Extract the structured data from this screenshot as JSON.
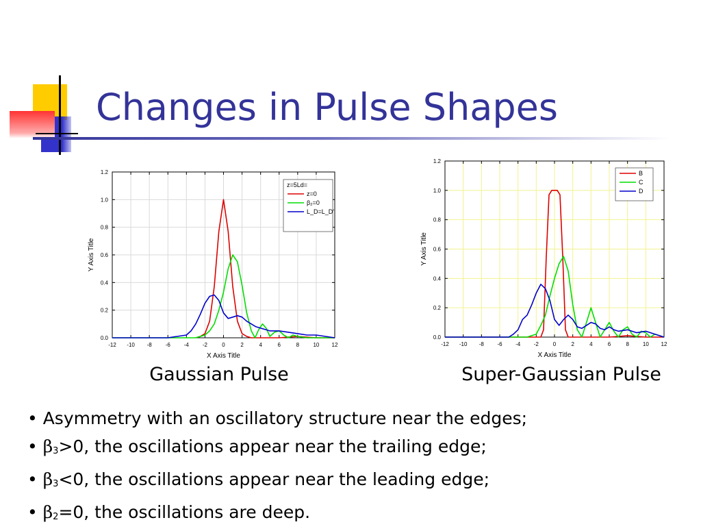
{
  "slide": {
    "title": "Changes in Pulse Shapes",
    "colors": {
      "title": "#333399",
      "deco_yellow": "#ffcc00",
      "deco_blue": "#3333cc",
      "deco_red": "#ff3333"
    }
  },
  "captions": {
    "left": "Gaussian Pulse",
    "right": "Super-Gaussian Pulse"
  },
  "bullets": [
    {
      "bullet": "•",
      "sym": "",
      "sub": "",
      "text": "Asymmetry with an oscillatory structure near the edges;"
    },
    {
      "bullet": "•",
      "sym": "β",
      "sub": "3",
      "text": ">0, the oscillations appear near the trailing edge;"
    },
    {
      "bullet": "•",
      "sym": "β",
      "sub": "3",
      "text": "<0, the oscillations appear near the leading edge;"
    },
    {
      "bullet": "•",
      "sym": "β",
      "sub": "2",
      "text": "=0, the oscillations are deep."
    }
  ],
  "chart_data": [
    {
      "type": "line",
      "xlabel": "X Axis Title",
      "ylabel": "Y Axis Title",
      "xlim": [
        -12,
        12
      ],
      "ylim": [
        0,
        1.2
      ],
      "xticks": [
        "-12",
        "-10",
        "-8",
        "-6",
        "-4",
        "-2",
        "0",
        "2",
        "4",
        "6",
        "8",
        "10",
        "12"
      ],
      "yticks": [
        "0.0",
        "0.2",
        "0.4",
        "0.6",
        "0.8",
        "1.0",
        "1.2"
      ],
      "grid": true,
      "grid_color": "#d9d9d9",
      "legend_position": "top-right",
      "legend_title": "z=5Ld=",
      "series": [
        {
          "name": "z=0",
          "color": "#dd0000",
          "x": [
            -3,
            -2.5,
            -2,
            -1.5,
            -1,
            -0.5,
            0,
            0.5,
            1,
            1.5,
            2,
            2.5,
            3,
            4,
            6,
            8,
            10,
            12
          ],
          "y": [
            0.0,
            0.01,
            0.03,
            0.12,
            0.37,
            0.77,
            1.0,
            0.77,
            0.37,
            0.12,
            0.03,
            0.01,
            0.0,
            0.0,
            0.0,
            0.01,
            0.0,
            0.0
          ]
        },
        {
          "name": "β₂=0",
          "color": "#00dd00",
          "x": [
            -12,
            -4,
            -3,
            -2,
            -1.5,
            -1,
            -0.5,
            0,
            0.5,
            1,
            1.5,
            2,
            2.5,
            3,
            3.4,
            3.8,
            4.2,
            4.6,
            5,
            5.5,
            6,
            6.5,
            7,
            7.5,
            8,
            9,
            10,
            12
          ],
          "y": [
            0,
            0,
            0.0,
            0.02,
            0.05,
            0.1,
            0.2,
            0.33,
            0.5,
            0.6,
            0.55,
            0.38,
            0.18,
            0.05,
            0.0,
            0.06,
            0.1,
            0.07,
            0.01,
            0.04,
            0.05,
            0.02,
            0.0,
            0.02,
            0.01,
            0.0,
            0.0,
            0.0
          ]
        },
        {
          "name": "L_D=L_D'",
          "color": "#0000cc",
          "x": [
            -12,
            -6,
            -5,
            -4,
            -3.5,
            -3,
            -2.5,
            -2,
            -1.5,
            -1,
            -0.5,
            0,
            0.5,
            1,
            1.5,
            2,
            2.5,
            3,
            3.5,
            4,
            4.5,
            5,
            6,
            7,
            8,
            9,
            10,
            12
          ],
          "y": [
            0,
            0.0,
            0.01,
            0.02,
            0.05,
            0.1,
            0.17,
            0.25,
            0.3,
            0.31,
            0.27,
            0.18,
            0.14,
            0.15,
            0.16,
            0.15,
            0.12,
            0.1,
            0.08,
            0.07,
            0.06,
            0.05,
            0.05,
            0.04,
            0.03,
            0.02,
            0.02,
            0.0
          ]
        }
      ]
    },
    {
      "type": "line",
      "xlabel": "X Axis Title",
      "ylabel": "Y Axis Title",
      "xlim": [
        -12,
        12
      ],
      "ylim": [
        0,
        1.2
      ],
      "xticks": [
        "-12",
        "-10",
        "-8",
        "-6",
        "-4",
        "-2",
        "0",
        "2",
        "4",
        "6",
        "8",
        "10",
        "12"
      ],
      "yticks": [
        "0.0",
        "0.2",
        "0.4",
        "0.6",
        "0.8",
        "1.0",
        "1.2"
      ],
      "grid": true,
      "grid_color": "#f2f290",
      "legend_position": "top-right",
      "legend_title": "",
      "series": [
        {
          "name": "B",
          "color": "#dd0000",
          "x": [
            -12,
            -1.5,
            -1.2,
            -0.9,
            -0.6,
            -0.3,
            0,
            0.3,
            0.6,
            0.9,
            1.2,
            1.5,
            2,
            4,
            6,
            8,
            10,
            12
          ],
          "y": [
            0,
            0.0,
            0.05,
            0.55,
            0.97,
            1.0,
            1.0,
            1.0,
            0.97,
            0.55,
            0.05,
            0.0,
            0.0,
            0.0,
            0.0,
            0.01,
            0.0,
            0.0
          ]
        },
        {
          "name": "C",
          "color": "#00dd00",
          "x": [
            -12,
            -3,
            -2,
            -1.5,
            -1,
            -0.5,
            0,
            0.5,
            1,
            1.5,
            2,
            2.5,
            3,
            3.5,
            4,
            4.5,
            5,
            5.5,
            6,
            6.5,
            7,
            7.5,
            8,
            8.5,
            9,
            9.5,
            10,
            10.5,
            11,
            12
          ],
          "y": [
            0,
            0.0,
            0.02,
            0.08,
            0.15,
            0.28,
            0.4,
            0.5,
            0.55,
            0.45,
            0.22,
            0.05,
            0.0,
            0.1,
            0.2,
            0.1,
            0.0,
            0.05,
            0.1,
            0.04,
            0.0,
            0.05,
            0.07,
            0.02,
            0.0,
            0.04,
            0.03,
            0.0,
            0.02,
            0.0
          ]
        },
        {
          "name": "D",
          "color": "#0000cc",
          "x": [
            -12,
            -5,
            -4.5,
            -4,
            -3.5,
            -3,
            -2.5,
            -2,
            -1.5,
            -1,
            -0.5,
            0,
            0.5,
            1,
            1.5,
            2,
            2.5,
            3,
            3.5,
            4,
            4.5,
            5,
            5.5,
            6,
            6.5,
            7,
            8,
            9,
            10,
            11,
            12
          ],
          "y": [
            0,
            0.0,
            0.02,
            0.05,
            0.12,
            0.15,
            0.22,
            0.3,
            0.36,
            0.33,
            0.25,
            0.12,
            0.08,
            0.12,
            0.15,
            0.12,
            0.07,
            0.06,
            0.08,
            0.1,
            0.09,
            0.06,
            0.05,
            0.07,
            0.05,
            0.04,
            0.05,
            0.03,
            0.04,
            0.02,
            0.0
          ]
        }
      ]
    }
  ]
}
